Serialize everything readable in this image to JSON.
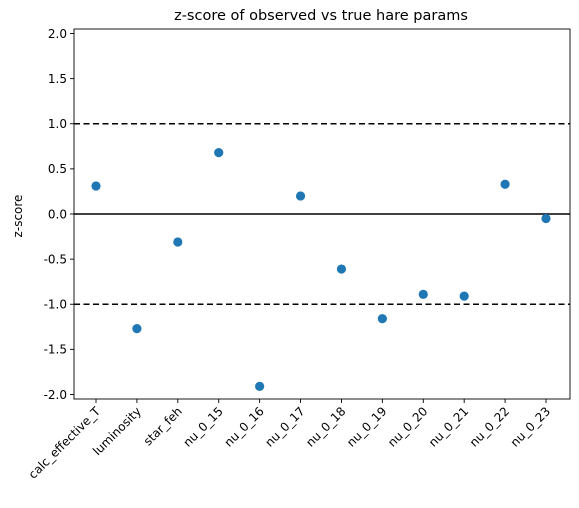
{
  "chart_data": {
    "type": "scatter",
    "title": "z-score of observed vs true hare params",
    "xlabel": "",
    "ylabel": "z-score",
    "categories": [
      "calc_effective_T",
      "luminosity",
      "star_feh",
      "nu_0_15",
      "nu_0_16",
      "nu_0_17",
      "nu_0_18",
      "nu_0_19",
      "nu_0_20",
      "nu_0_21",
      "nu_0_22",
      "nu_0_23"
    ],
    "values": [
      0.31,
      -1.27,
      -0.31,
      0.68,
      -1.91,
      0.2,
      -0.61,
      -1.16,
      -0.89,
      -0.91,
      0.33,
      -0.05
    ],
    "ylim": [
      -2.05,
      2.05
    ],
    "yticks": [
      "-2.0",
      "-1.5",
      "-1.0",
      "-0.5",
      "0.0",
      "0.5",
      "1.0",
      "1.5",
      "2.0"
    ],
    "ytick_values": [
      -2.0,
      -1.5,
      -1.0,
      -0.5,
      0.0,
      0.5,
      1.0,
      1.5,
      2.0
    ],
    "hlines": [
      {
        "y": 1.0,
        "style": "dashed"
      },
      {
        "y": 0.0,
        "style": "solid"
      },
      {
        "y": -1.0,
        "style": "dashed"
      }
    ],
    "grid": false,
    "legend": "none",
    "marker_color": "#1f77b4",
    "line_color": "#000000"
  }
}
